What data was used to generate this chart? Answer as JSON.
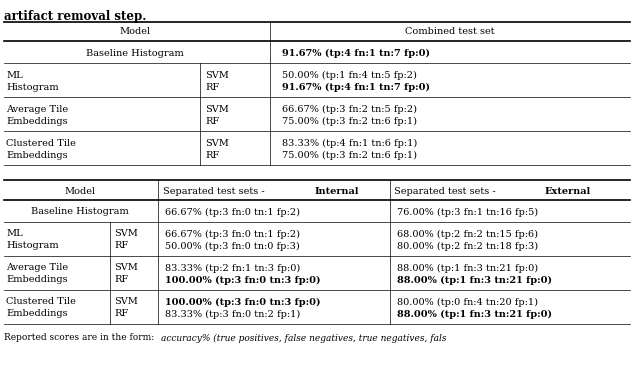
{
  "title": "artifact removal step.",
  "footer_normal": "Reported scores are in the form: ",
  "footer_italic": "accuracy% (true positives, false negatives, true negatives, fals",
  "base_fs": 7.0,
  "title_fs": 8.5,
  "footer_fs": 6.5,
  "lw_thick": 1.2,
  "lw_thin": 0.5,
  "t1": {
    "header": [
      "Model",
      "Combined test set"
    ],
    "rows": [
      {
        "type": "baseline",
        "c1": "Baseline Histogram",
        "c2": "91.67% (tp:4 fn:1 tn:7 fp:0)",
        "c2_bold": true
      },
      {
        "type": "double",
        "c1a": "ML",
        "c1b": "SVM",
        "c2a": "50.00% (tp:1 fn:4 tn:5 fp:2)",
        "c2a_bold": false,
        "c1a2": "Histogram",
        "c1b2": "RF",
        "c2b": "91.67% (tp:4 fn:1 tn:7 fp:0)",
        "c2b_bold": true
      },
      {
        "type": "double",
        "c1a": "Average Tile",
        "c1b": "SVM",
        "c2a": "66.67% (tp:3 fn:2 tn:5 fp:2)",
        "c2a_bold": false,
        "c1a2": "Embeddings",
        "c1b2": "RF",
        "c2b": "75.00% (tp:3 fn:2 tn:6 fp:1)",
        "c2b_bold": false
      },
      {
        "type": "double",
        "c1a": "Clustered Tile",
        "c1b": "SVM",
        "c2a": "83.33% (tp:4 fn:1 tn:6 fp:1)",
        "c2a_bold": false,
        "c1a2": "Embeddings",
        "c1b2": "RF",
        "c2b": "75.00% (tp:3 fn:2 tn:6 fp:1)",
        "c2b_bold": false
      }
    ]
  },
  "t2": {
    "header": [
      "Model",
      "Separated test sets - Internal",
      "Separated test sets - External"
    ],
    "rows": [
      {
        "type": "baseline",
        "c1": "Baseline Histogram",
        "c2": "66.67% (tp:3 fn:0 tn:1 fp:2)",
        "c2_bold": false,
        "c3": "76.00% (tp:3 fn:1 tn:16 fp:5)",
        "c3_bold": false
      },
      {
        "type": "double",
        "c1a": "ML",
        "c1b": "SVM",
        "c2a": "66.67% (tp:3 fn:0 tn:1 fp:2)",
        "c2a_bold": false,
        "c3a": "68.00% (tp:2 fn:2 tn:15 fp:6)",
        "c3a_bold": false,
        "c1a2": "Histogram",
        "c1b2": "RF",
        "c2b": "50.00% (tp:3 fn:0 tn:0 fp:3)",
        "c2b_bold": false,
        "c3b": "80.00% (tp:2 fn:2 tn:18 fp:3)",
        "c3b_bold": false
      },
      {
        "type": "double",
        "c1a": "Average Tile",
        "c1b": "SVM",
        "c2a": "83.33% (tp:2 fn:1 tn:3 fp:0)",
        "c2a_bold": false,
        "c3a": "88.00% (tp:1 fn:3 tn:21 fp:0)",
        "c3a_bold": false,
        "c1a2": "Embeddings",
        "c1b2": "RF",
        "c2b": "100.00% (tp:3 fn:0 tn:3 fp:0)",
        "c2b_bold": true,
        "c3b": "88.00% (tp:1 fn:3 tn:21 fp:0)",
        "c3b_bold": true
      },
      {
        "type": "double",
        "c1a": "Clustered Tile",
        "c1b": "SVM",
        "c2a": "100.00% (tp:3 fn:0 tn:3 fp:0)",
        "c2a_bold": true,
        "c3a": "80.00% (tp:0 fn:4 tn:20 fp:1)",
        "c3a_bold": false,
        "c1a2": "Embeddings",
        "c1b2": "RF",
        "c2b": "83.33% (tp:3 fn:0 tn:2 fp:1)",
        "c2b_bold": false,
        "c3b": "88.00% (tp:1 fn:3 tn:21 fp:0)",
        "c3b_bold": true
      }
    ]
  }
}
